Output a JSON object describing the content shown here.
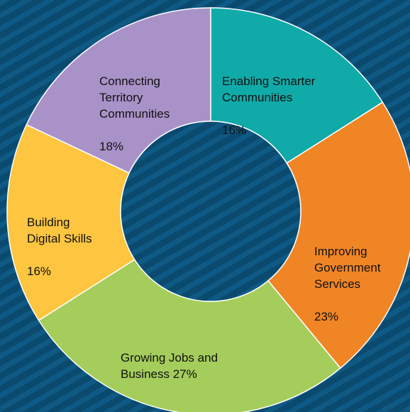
{
  "chart_data": {
    "type": "pie",
    "title": "",
    "donut": true,
    "slices": [
      {
        "label": "Enabling Smarter\nCommunities",
        "value": 16,
        "value_label": "16%",
        "color": "#10aaa8"
      },
      {
        "label": "Improving\nGovernment\nServices",
        "value": 23,
        "value_label": "23%",
        "color": "#f08525"
      },
      {
        "label": "Growing Jobs and\nBusiness",
        "value": 27,
        "value_label": "27%",
        "color": "#a5cd5b"
      },
      {
        "label": "Building\nDigital Skills",
        "value": 16,
        "value_label": "16%",
        "color": "#fdc540"
      },
      {
        "label": "Connecting\nTerritory\nCommunities",
        "value": 18,
        "value_label": "18%",
        "color": "#a992c8"
      }
    ]
  },
  "theme": {
    "background": "#0b4a6f",
    "stripe": "#0f5a85",
    "hole": "#0b4a6f"
  }
}
